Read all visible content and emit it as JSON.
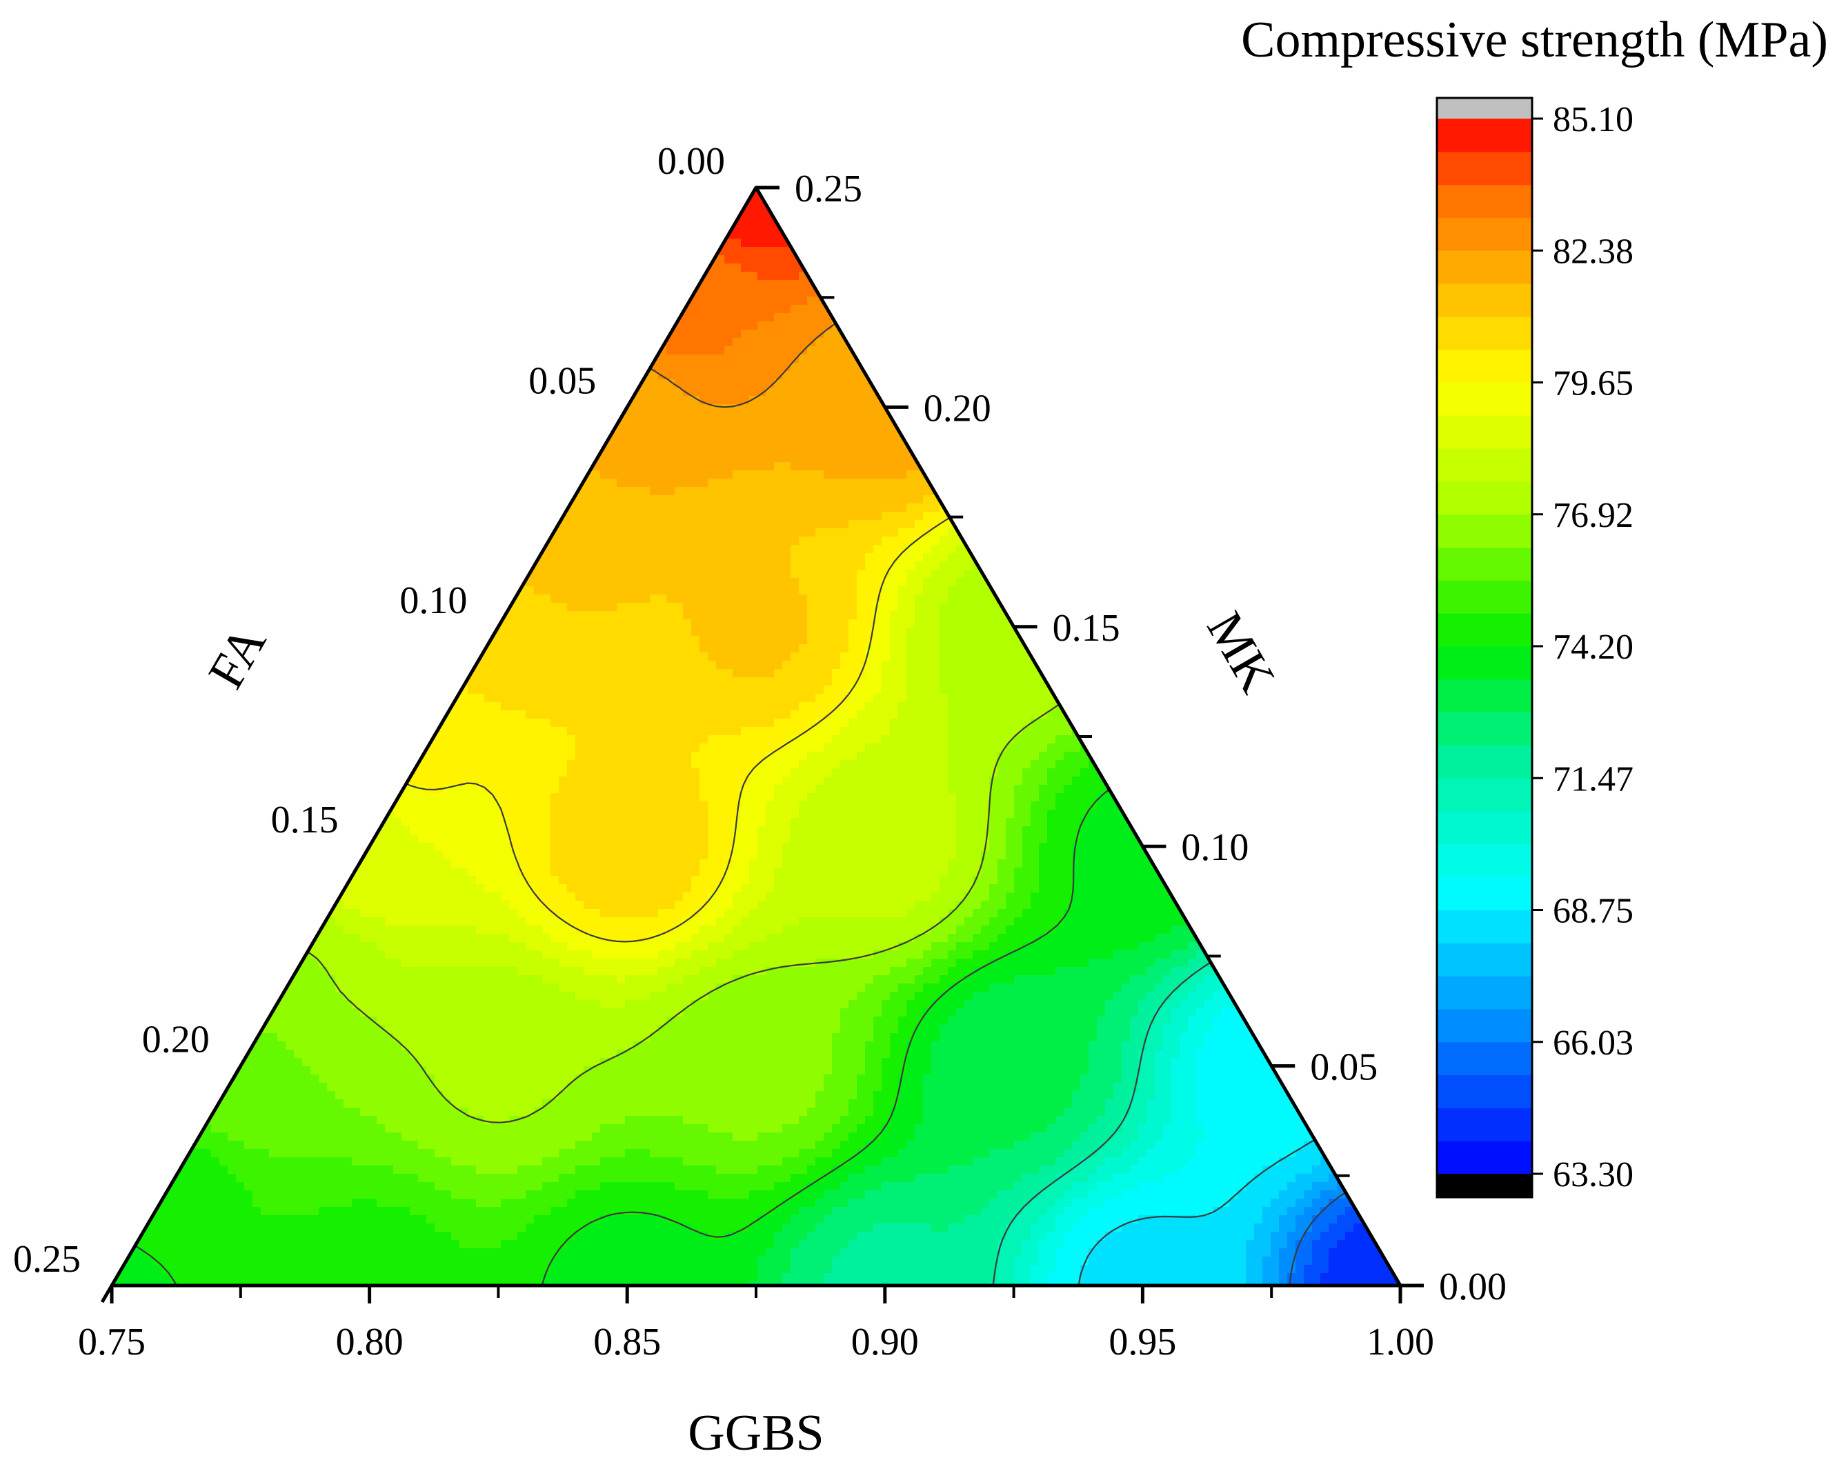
{
  "chart_data": {
    "type": "ternary-contour",
    "colorbar_title": "Compressive strength (MPa)",
    "axes": {
      "bottom": {
        "label": "GGBS",
        "range": [
          0.75,
          1.0
        ],
        "ticks": [
          "0.75",
          "0.80",
          "0.85",
          "0.90",
          "0.95",
          "1.00"
        ]
      },
      "left": {
        "label": "FA",
        "range": [
          0.0,
          0.25
        ],
        "ticks": [
          "0.00",
          "0.05",
          "0.10",
          "0.15",
          "0.20",
          "0.25"
        ]
      },
      "right": {
        "label": "MK",
        "range": [
          0.0,
          0.25
        ],
        "ticks": [
          "0.25",
          "0.20",
          "0.15",
          "0.10",
          "0.05",
          "0.00"
        ]
      }
    },
    "colorbar": {
      "min": 63.3,
      "max": 85.1,
      "ticks": [
        "85.10",
        "82.38",
        "79.65",
        "76.92",
        "74.20",
        "71.47",
        "68.75",
        "66.03",
        "63.30"
      ],
      "levels": 32,
      "above_color": "#c0c0c0",
      "below_color": "#000000"
    },
    "contour_lines_MPa": [
      82.38,
      79.65,
      76.92,
      74.2,
      71.47,
      68.75,
      66.03
    ],
    "samples": [
      {
        "GGBS": 0.75,
        "FA": 0.0,
        "MK": 0.25,
        "strength": 84.8
      },
      {
        "GGBS": 0.75,
        "FA": 0.03,
        "MK": 0.22,
        "strength": 83.2
      },
      {
        "GGBS": 0.75,
        "FA": 0.05,
        "MK": 0.2,
        "strength": 82.0
      },
      {
        "GGBS": 0.75,
        "FA": 0.08,
        "MK": 0.17,
        "strength": 81.3
      },
      {
        "GGBS": 0.75,
        "FA": 0.1,
        "MK": 0.15,
        "strength": 80.8
      },
      {
        "GGBS": 0.75,
        "FA": 0.13,
        "MK": 0.12,
        "strength": 79.7
      },
      {
        "GGBS": 0.75,
        "FA": 0.15,
        "MK": 0.1,
        "strength": 78.8
      },
      {
        "GGBS": 0.75,
        "FA": 0.18,
        "MK": 0.07,
        "strength": 76.9
      },
      {
        "GGBS": 0.75,
        "FA": 0.2,
        "MK": 0.05,
        "strength": 76.0
      },
      {
        "GGBS": 0.75,
        "FA": 0.23,
        "MK": 0.02,
        "strength": 74.5
      },
      {
        "GGBS": 0.75,
        "FA": 0.25,
        "MK": 0.0,
        "strength": 74.0
      },
      {
        "GGBS": 0.8,
        "FA": 0.0,
        "MK": 0.2,
        "strength": 82.0
      },
      {
        "GGBS": 0.8,
        "FA": 0.05,
        "MK": 0.15,
        "strength": 81.1
      },
      {
        "GGBS": 0.8,
        "FA": 0.1,
        "MK": 0.1,
        "strength": 80.9
      },
      {
        "GGBS": 0.8,
        "FA": 0.15,
        "MK": 0.05,
        "strength": 77.0
      },
      {
        "GGBS": 0.8,
        "FA": 0.2,
        "MK": 0.0,
        "strength": 74.5
      },
      {
        "GGBS": 0.85,
        "FA": 0.0,
        "MK": 0.15,
        "strength": 77.2
      },
      {
        "GGBS": 0.85,
        "FA": 0.05,
        "MK": 0.1,
        "strength": 77.9
      },
      {
        "GGBS": 0.85,
        "FA": 0.1,
        "MK": 0.05,
        "strength": 76.5
      },
      {
        "GGBS": 0.85,
        "FA": 0.15,
        "MK": 0.0,
        "strength": 73.9
      },
      {
        "GGBS": 0.9,
        "FA": 0.0,
        "MK": 0.1,
        "strength": 74.0
      },
      {
        "GGBS": 0.9,
        "FA": 0.05,
        "MK": 0.05,
        "strength": 73.0
      },
      {
        "GGBS": 0.9,
        "FA": 0.1,
        "MK": 0.0,
        "strength": 72.0
      },
      {
        "GGBS": 0.95,
        "FA": 0.0,
        "MK": 0.05,
        "strength": 69.0
      },
      {
        "GGBS": 0.95,
        "FA": 0.05,
        "MK": 0.0,
        "strength": 68.5
      },
      {
        "GGBS": 1.0,
        "FA": 0.0,
        "MK": 0.0,
        "strength": 64.0
      }
    ]
  }
}
